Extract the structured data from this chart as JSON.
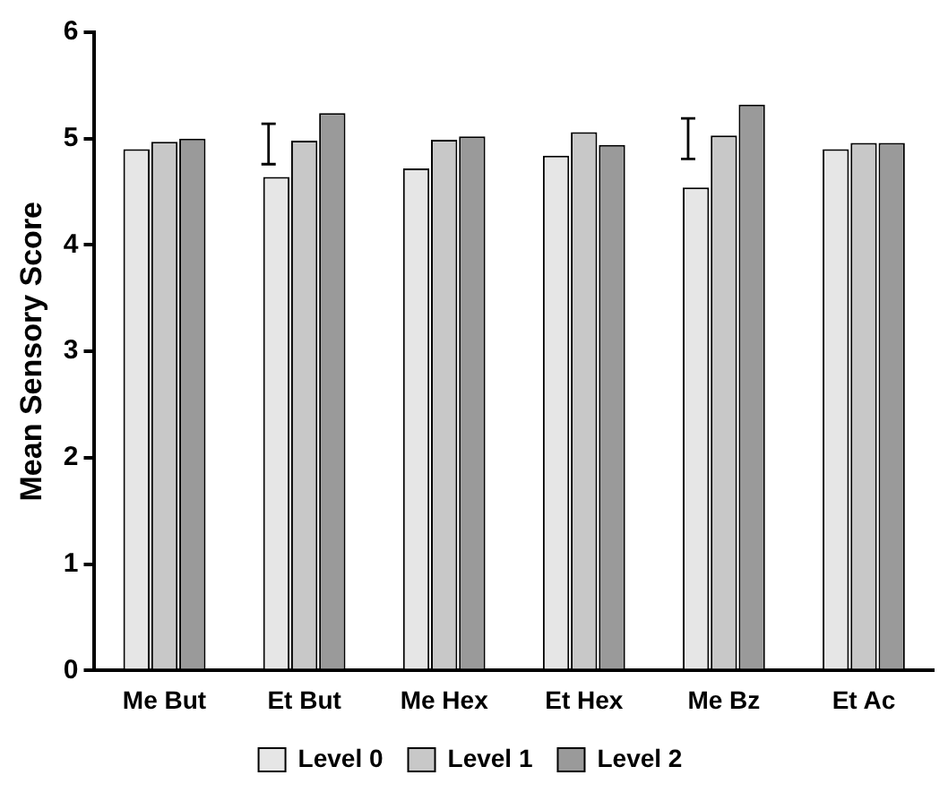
{
  "chart_data": {
    "type": "bar",
    "ylabel": "Mean Sensory Score",
    "categories": [
      "Me But",
      "Et But",
      "Me Hex",
      "Et Hex",
      "Me Bz",
      "Et Ac"
    ],
    "series": [
      {
        "name": "Level 0",
        "color": "#e6e6e6",
        "values": [
          4.9,
          4.64,
          4.72,
          4.84,
          4.54,
          4.9
        ],
        "errors": [
          null,
          [
            4.76,
            5.14
          ],
          null,
          null,
          [
            4.81,
            5.19
          ],
          null
        ]
      },
      {
        "name": "Level 1",
        "color": "#c8c8c8",
        "values": [
          4.97,
          4.98,
          4.99,
          5.06,
          5.03,
          4.96
        ]
      },
      {
        "name": "Level 2",
        "color": "#9a9a9a",
        "values": [
          5.0,
          5.24,
          5.02,
          4.94,
          5.32,
          4.96
        ]
      }
    ],
    "ylim": [
      0,
      6
    ],
    "yticks": [
      0,
      1,
      2,
      3,
      4,
      5,
      6
    ],
    "grid": false,
    "legend": "bottom"
  }
}
